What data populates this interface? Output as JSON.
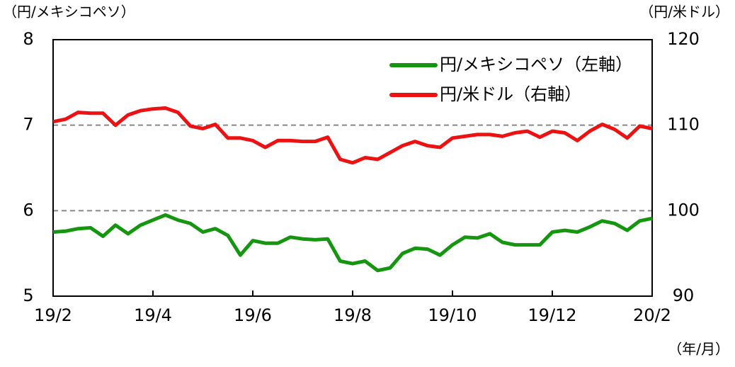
{
  "chart_data": {
    "type": "line",
    "y_label": "（円/メキシコペソ）",
    "y2_label": "（円/米ドル）",
    "x_label": "（年/月）",
    "xlim": [
      0,
      12
    ],
    "xticks": [
      {
        "value": 0,
        "label": "19/2"
      },
      {
        "value": 2,
        "label": "19/4"
      },
      {
        "value": 4,
        "label": "19/6"
      },
      {
        "value": 6,
        "label": "19/8"
      },
      {
        "value": 8,
        "label": "19/10"
      },
      {
        "value": 10,
        "label": "19/12"
      },
      {
        "value": 12,
        "label": "20/2"
      }
    ],
    "ylim": [
      5,
      8
    ],
    "yticks": [
      5,
      6,
      7,
      8
    ],
    "y2lim": [
      90,
      120
    ],
    "y2ticks": [
      90,
      100,
      110,
      120
    ],
    "grid": true,
    "legend": "upper right",
    "x": [
      0,
      0.25,
      0.5,
      0.75,
      1,
      1.25,
      1.5,
      1.75,
      2,
      2.25,
      2.5,
      2.75,
      3,
      3.25,
      3.5,
      3.75,
      4,
      4.25,
      4.5,
      4.75,
      5,
      5.25,
      5.5,
      5.75,
      6,
      6.25,
      6.5,
      6.75,
      7,
      7.25,
      7.5,
      7.75,
      8,
      8.25,
      8.5,
      8.75,
      9,
      9.25,
      9.5,
      9.75,
      10,
      10.25,
      10.5,
      10.75,
      11,
      11.25,
      11.5,
      11.75,
      12
    ],
    "series": [
      {
        "name": "円/メキシコペソ（左軸）",
        "color": "#14960f",
        "axis": "y",
        "values": [
          5.75,
          5.76,
          5.79,
          5.8,
          5.7,
          5.83,
          5.73,
          5.83,
          5.89,
          5.95,
          5.89,
          5.85,
          5.75,
          5.79,
          5.71,
          5.48,
          5.65,
          5.62,
          5.62,
          5.69,
          5.67,
          5.66,
          5.67,
          5.41,
          5.38,
          5.41,
          5.3,
          5.33,
          5.5,
          5.56,
          5.55,
          5.48,
          5.6,
          5.69,
          5.68,
          5.73,
          5.63,
          5.6,
          5.6,
          5.6,
          5.75,
          5.77,
          5.75,
          5.81,
          5.88,
          5.85,
          5.77,
          5.88,
          5.91
        ]
      },
      {
        "name": "円/米ドル（右軸）",
        "color": "#ee1111",
        "axis": "y2",
        "values": [
          110.4,
          110.7,
          111.5,
          111.4,
          111.4,
          110.0,
          111.2,
          111.7,
          111.9,
          112.0,
          111.5,
          109.9,
          109.6,
          110.1,
          108.5,
          108.5,
          108.2,
          107.4,
          108.2,
          108.2,
          108.1,
          108.1,
          108.6,
          106.0,
          105.6,
          106.2,
          106.0,
          106.8,
          107.6,
          108.1,
          107.6,
          107.4,
          108.5,
          108.7,
          108.9,
          108.9,
          108.7,
          109.1,
          109.3,
          108.6,
          109.3,
          109.1,
          108.2,
          109.3,
          110.1,
          109.5,
          108.5,
          109.9,
          109.6
        ]
      }
    ]
  }
}
